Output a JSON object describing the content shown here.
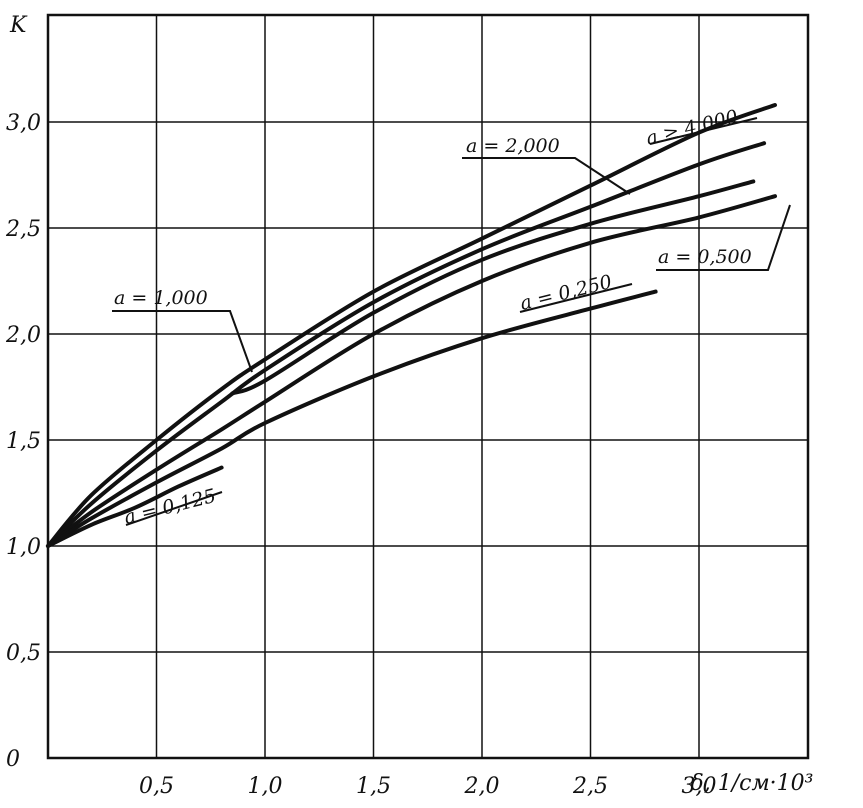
{
  "chart_data": {
    "type": "line",
    "title": "",
    "ylabel": "K",
    "xlabel": "δ, 1/см·10³",
    "xlim": [
      0,
      3.4
    ],
    "ylim": [
      0,
      3.5
    ],
    "grid": true,
    "x_ticks": [
      "0,5",
      "1,0",
      "1,5",
      "2,0",
      "2,5",
      "3,0"
    ],
    "y_ticks": [
      "0",
      "0,5",
      "1,0",
      "1,5",
      "2,0",
      "2,5",
      "3,0"
    ],
    "series": [
      {
        "name": "a ≥ 4,000",
        "points": [
          [
            0,
            1.0
          ],
          [
            0.2,
            1.24
          ],
          [
            0.5,
            1.5
          ],
          [
            0.8,
            1.74
          ],
          [
            1.0,
            1.88
          ],
          [
            1.5,
            2.2
          ],
          [
            2.0,
            2.45
          ],
          [
            2.5,
            2.7
          ],
          [
            3.0,
            2.95
          ],
          [
            3.35,
            3.08
          ]
        ]
      },
      {
        "name": "a = 2,000",
        "points": [
          [
            0,
            1.0
          ],
          [
            0.2,
            1.2
          ],
          [
            0.5,
            1.45
          ],
          [
            0.8,
            1.68
          ],
          [
            1.0,
            1.83
          ],
          [
            1.5,
            2.15
          ],
          [
            2.0,
            2.4
          ],
          [
            2.5,
            2.6
          ],
          [
            3.0,
            2.8
          ],
          [
            3.3,
            2.9
          ]
        ]
      },
      {
        "name": "a = 1,000",
        "points": [
          [
            0.85,
            1.72
          ],
          [
            1.0,
            1.78
          ],
          [
            1.5,
            2.1
          ],
          [
            2.0,
            2.35
          ],
          [
            2.5,
            2.52
          ],
          [
            3.0,
            2.65
          ],
          [
            3.25,
            2.72
          ]
        ]
      },
      {
        "name": "a = 0,500",
        "points": [
          [
            0,
            1.0
          ],
          [
            0.2,
            1.16
          ],
          [
            0.5,
            1.36
          ],
          [
            0.8,
            1.55
          ],
          [
            1.0,
            1.68
          ],
          [
            1.5,
            2.0
          ],
          [
            2.0,
            2.25
          ],
          [
            2.5,
            2.43
          ],
          [
            3.0,
            2.55
          ],
          [
            3.35,
            2.65
          ]
        ]
      },
      {
        "name": "a = 0,250",
        "points": [
          [
            0,
            1.0
          ],
          [
            0.2,
            1.13
          ],
          [
            0.5,
            1.3
          ],
          [
            0.8,
            1.46
          ],
          [
            1.0,
            1.58
          ],
          [
            1.5,
            1.8
          ],
          [
            2.0,
            1.98
          ],
          [
            2.5,
            2.12
          ],
          [
            2.8,
            2.2
          ]
        ]
      },
      {
        "name": "a = 0,125",
        "points": [
          [
            0,
            1.0
          ],
          [
            0.2,
            1.1
          ],
          [
            0.4,
            1.18
          ],
          [
            0.6,
            1.28
          ],
          [
            0.8,
            1.37
          ]
        ]
      }
    ]
  }
}
